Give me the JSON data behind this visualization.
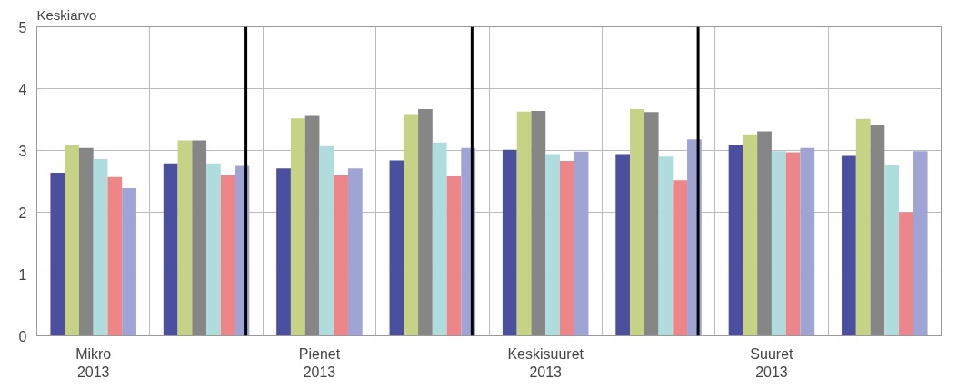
{
  "chart_data": {
    "type": "bar",
    "ylabel": "Keskiarvo",
    "categories": [
      "Mikro\n2013",
      null,
      "Pienet\n2013",
      null,
      "Keskisuuret\n2013",
      null,
      "Suuret\n2013",
      null
    ],
    "series": [
      {
        "color": "#4b4f9f",
        "values": [
          2.64,
          2.79,
          2.71,
          2.84,
          3.01,
          2.94,
          3.08,
          2.91
        ]
      },
      {
        "color": "#c6d384",
        "values": [
          3.08,
          3.16,
          3.52,
          3.59,
          3.63,
          3.67,
          3.26,
          3.51
        ]
      },
      {
        "color": "#868686",
        "values": [
          3.04,
          3.16,
          3.56,
          3.67,
          3.64,
          3.62,
          3.31,
          3.41
        ]
      },
      {
        "color": "#afdcdd",
        "values": [
          2.86,
          2.79,
          3.07,
          3.13,
          2.94,
          2.9,
          2.99,
          2.76
        ]
      },
      {
        "color": "#ee8689",
        "values": [
          2.57,
          2.6,
          2.6,
          2.58,
          2.83,
          2.52,
          2.97,
          2.0
        ]
      },
      {
        "color": "#9ea4d4",
        "values": [
          2.39,
          2.75,
          2.71,
          3.04,
          2.98,
          3.18,
          3.04,
          2.99
        ]
      }
    ],
    "ylim": [
      0,
      5
    ],
    "yticks": [
      0,
      1,
      2,
      3,
      4,
      5
    ],
    "grid": true
  }
}
